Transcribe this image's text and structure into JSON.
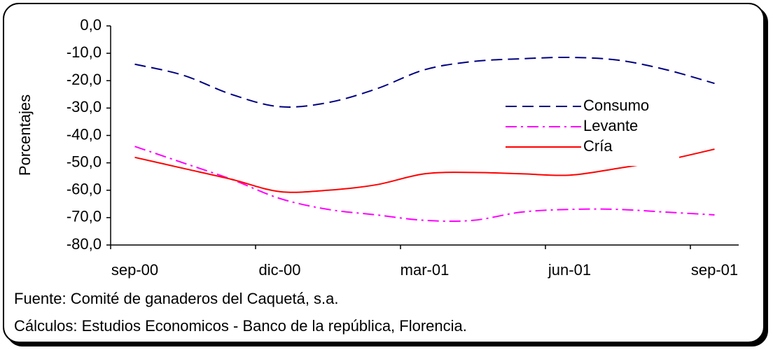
{
  "chart_data": {
    "type": "line",
    "y_label": "Porcentajes",
    "categories": [
      "sep-00",
      null,
      null,
      "dic-00",
      null,
      null,
      "mar-01",
      null,
      null,
      "jun-01",
      null,
      null,
      "sep-01"
    ],
    "series": [
      {
        "name": "Consumo",
        "color": "#000080",
        "style": "dashed",
        "values": [
          -14,
          -18,
          -25,
          -29.5,
          -28,
          -23,
          -16,
          -13,
          -12,
          -11.5,
          -12.5,
          -16,
          -21
        ]
      },
      {
        "name": "Levante",
        "color": "#ff00ff",
        "style": "dashdot",
        "values": [
          -44,
          -50,
          -56,
          -63,
          -67,
          -69,
          -71,
          -71,
          -68,
          -67,
          -67,
          -68,
          -69
        ]
      },
      {
        "name": "Cría",
        "color": "#ff0000",
        "style": "solid",
        "values": [
          -48,
          -52,
          -56,
          -60.5,
          -60,
          -58,
          -54,
          -53.5,
          -54,
          -54.5,
          -52,
          -49,
          -45
        ]
      }
    ],
    "ylim": [
      -80,
      0
    ],
    "yticks": [
      {
        "value": 0,
        "label": "0,0"
      },
      {
        "value": -10,
        "label": "-10,0"
      },
      {
        "value": -20,
        "label": "-20,0"
      },
      {
        "value": -30,
        "label": "-30,0"
      },
      {
        "value": -40,
        "label": "-40,0"
      },
      {
        "value": -50,
        "label": "-50,0"
      },
      {
        "value": -60,
        "label": "-60,0"
      },
      {
        "value": -70,
        "label": "-70,0"
      },
      {
        "value": -80,
        "label": "-80,0"
      }
    ],
    "legend": "upper right",
    "notes": [
      "Fuente: Comité de ganaderos del Caquetá, s.a.",
      "Cálculos: Estudios Economicos - Banco de la república, Florencia."
    ]
  }
}
